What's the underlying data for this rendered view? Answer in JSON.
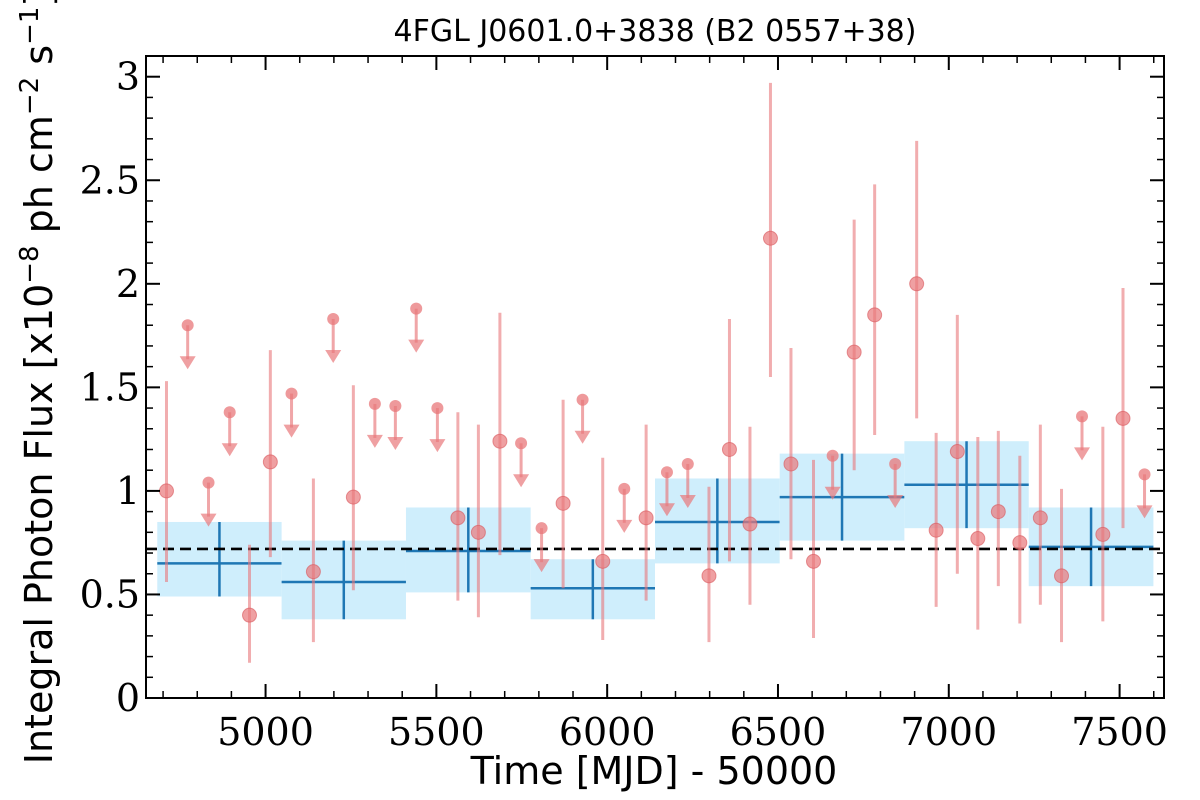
{
  "chart_data": {
    "type": "scatter",
    "title": "4FGL J0601.0+3838 (B2 0557+38)",
    "xlabel": "Time [MJD] - 50000",
    "ylabel": "Integral Photon Flux [x10",
    "ylabel_exp1": "−8",
    "ylabel_mid": " ph cm",
    "ylabel_exp2": "−2",
    "ylabel_mid2": " s",
    "ylabel_exp3": "−1",
    "ylabel_end": "]",
    "xlim": [
      4650,
      7630
    ],
    "ylim": [
      0,
      3.1
    ],
    "xticks": [
      5000,
      5500,
      6000,
      6500,
      7000,
      7500
    ],
    "xtick_labels": [
      "5000",
      "5500",
      "6000",
      "6500",
      "7000",
      "7500"
    ],
    "yticks": [
      0,
      0.5,
      1,
      1.5,
      2,
      2.5,
      3
    ],
    "ytick_labels": [
      "0",
      "0.5",
      "1",
      "1.5",
      "2",
      "2.5",
      "3"
    ],
    "mean_flux": 0.72,
    "colors": {
      "points": "#e8777a",
      "points_edge": "#d9575b",
      "bins_fill": "#cfeefc",
      "bins_line": "#1f77b4",
      "mean_line": "#000000"
    },
    "bins": [
      {
        "x0": 4683,
        "x1": 5047,
        "y": 0.65,
        "ylo": 0.49,
        "yhi": 0.85
      },
      {
        "x0": 5047,
        "x1": 5411,
        "y": 0.56,
        "ylo": 0.38,
        "yhi": 0.76
      },
      {
        "x0": 5411,
        "x1": 5776,
        "y": 0.71,
        "ylo": 0.51,
        "yhi": 0.92
      },
      {
        "x0": 5776,
        "x1": 6140,
        "y": 0.53,
        "ylo": 0.38,
        "yhi": 0.67
      },
      {
        "x0": 6140,
        "x1": 6505,
        "y": 0.85,
        "ylo": 0.65,
        "yhi": 1.06
      },
      {
        "x0": 6505,
        "x1": 6870,
        "y": 0.97,
        "ylo": 0.76,
        "yhi": 1.18
      },
      {
        "x0": 6870,
        "x1": 7234,
        "y": 1.03,
        "ylo": 0.82,
        "yhi": 1.24
      },
      {
        "x0": 7234,
        "x1": 7599,
        "y": 0.73,
        "ylo": 0.54,
        "yhi": 0.92
      }
    ],
    "detections": [
      {
        "x": 4710,
        "y": 1.0,
        "ylo": 0.56,
        "yhi": 1.53
      },
      {
        "x": 4953,
        "y": 0.4,
        "ylo": 0.17,
        "yhi": 0.74
      },
      {
        "x": 5014,
        "y": 1.14,
        "ylo": 0.68,
        "yhi": 1.68
      },
      {
        "x": 5140,
        "y": 0.61,
        "ylo": 0.27,
        "yhi": 1.06
      },
      {
        "x": 5257,
        "y": 0.97,
        "ylo": 0.52,
        "yhi": 1.51
      },
      {
        "x": 5563,
        "y": 0.87,
        "ylo": 0.47,
        "yhi": 1.38
      },
      {
        "x": 5623,
        "y": 0.8,
        "ylo": 0.39,
        "yhi": 1.32
      },
      {
        "x": 5686,
        "y": 1.24,
        "ylo": 0.69,
        "yhi": 1.86
      },
      {
        "x": 5871,
        "y": 0.94,
        "ylo": 0.53,
        "yhi": 1.44
      },
      {
        "x": 5987,
        "y": 0.66,
        "ylo": 0.28,
        "yhi": 1.16
      },
      {
        "x": 6114,
        "y": 0.87,
        "ylo": 0.47,
        "yhi": 1.32
      },
      {
        "x": 6298,
        "y": 0.59,
        "ylo": 0.27,
        "yhi": 1.02
      },
      {
        "x": 6358,
        "y": 1.2,
        "ylo": 0.66,
        "yhi": 1.83
      },
      {
        "x": 6418,
        "y": 0.84,
        "ylo": 0.45,
        "yhi": 1.31
      },
      {
        "x": 6478,
        "y": 2.22,
        "ylo": 1.55,
        "yhi": 2.97
      },
      {
        "x": 6538,
        "y": 1.13,
        "ylo": 0.67,
        "yhi": 1.69
      },
      {
        "x": 6604,
        "y": 0.66,
        "ylo": 0.29,
        "yhi": 1.15
      },
      {
        "x": 6723,
        "y": 1.67,
        "ylo": 1.1,
        "yhi": 2.31
      },
      {
        "x": 6783,
        "y": 1.85,
        "ylo": 1.27,
        "yhi": 2.48
      },
      {
        "x": 6906,
        "y": 2.0,
        "ylo": 1.35,
        "yhi": 2.69
      },
      {
        "x": 6963,
        "y": 0.81,
        "ylo": 0.44,
        "yhi": 1.28
      },
      {
        "x": 7025,
        "y": 1.19,
        "ylo": 0.6,
        "yhi": 1.85
      },
      {
        "x": 7085,
        "y": 0.77,
        "ylo": 0.33,
        "yhi": 1.26
      },
      {
        "x": 7145,
        "y": 0.9,
        "ylo": 0.54,
        "yhi": 1.29
      },
      {
        "x": 7208,
        "y": 0.75,
        "ylo": 0.36,
        "yhi": 1.17
      },
      {
        "x": 7268,
        "y": 0.87,
        "ylo": 0.45,
        "yhi": 1.32
      },
      {
        "x": 7330,
        "y": 0.59,
        "ylo": 0.27,
        "yhi": 1.01
      },
      {
        "x": 7451,
        "y": 0.79,
        "ylo": 0.37,
        "yhi": 1.31
      },
      {
        "x": 7510,
        "y": 1.35,
        "ylo": 0.82,
        "yhi": 1.98
      }
    ],
    "upper_limits": [
      {
        "x": 4772,
        "y": 1.8
      },
      {
        "x": 4833,
        "y": 1.04
      },
      {
        "x": 4895,
        "y": 1.38
      },
      {
        "x": 5076,
        "y": 1.47
      },
      {
        "x": 5198,
        "y": 1.83
      },
      {
        "x": 5320,
        "y": 1.42
      },
      {
        "x": 5380,
        "y": 1.41
      },
      {
        "x": 5441,
        "y": 1.88
      },
      {
        "x": 5503,
        "y": 1.4
      },
      {
        "x": 5748,
        "y": 1.23
      },
      {
        "x": 5808,
        "y": 0.82
      },
      {
        "x": 5928,
        "y": 1.44
      },
      {
        "x": 6050,
        "y": 1.01
      },
      {
        "x": 6175,
        "y": 1.09
      },
      {
        "x": 6236,
        "y": 1.13
      },
      {
        "x": 6660,
        "y": 1.17
      },
      {
        "x": 6843,
        "y": 1.13
      },
      {
        "x": 7390,
        "y": 1.36
      },
      {
        "x": 7573,
        "y": 1.08
      }
    ]
  }
}
